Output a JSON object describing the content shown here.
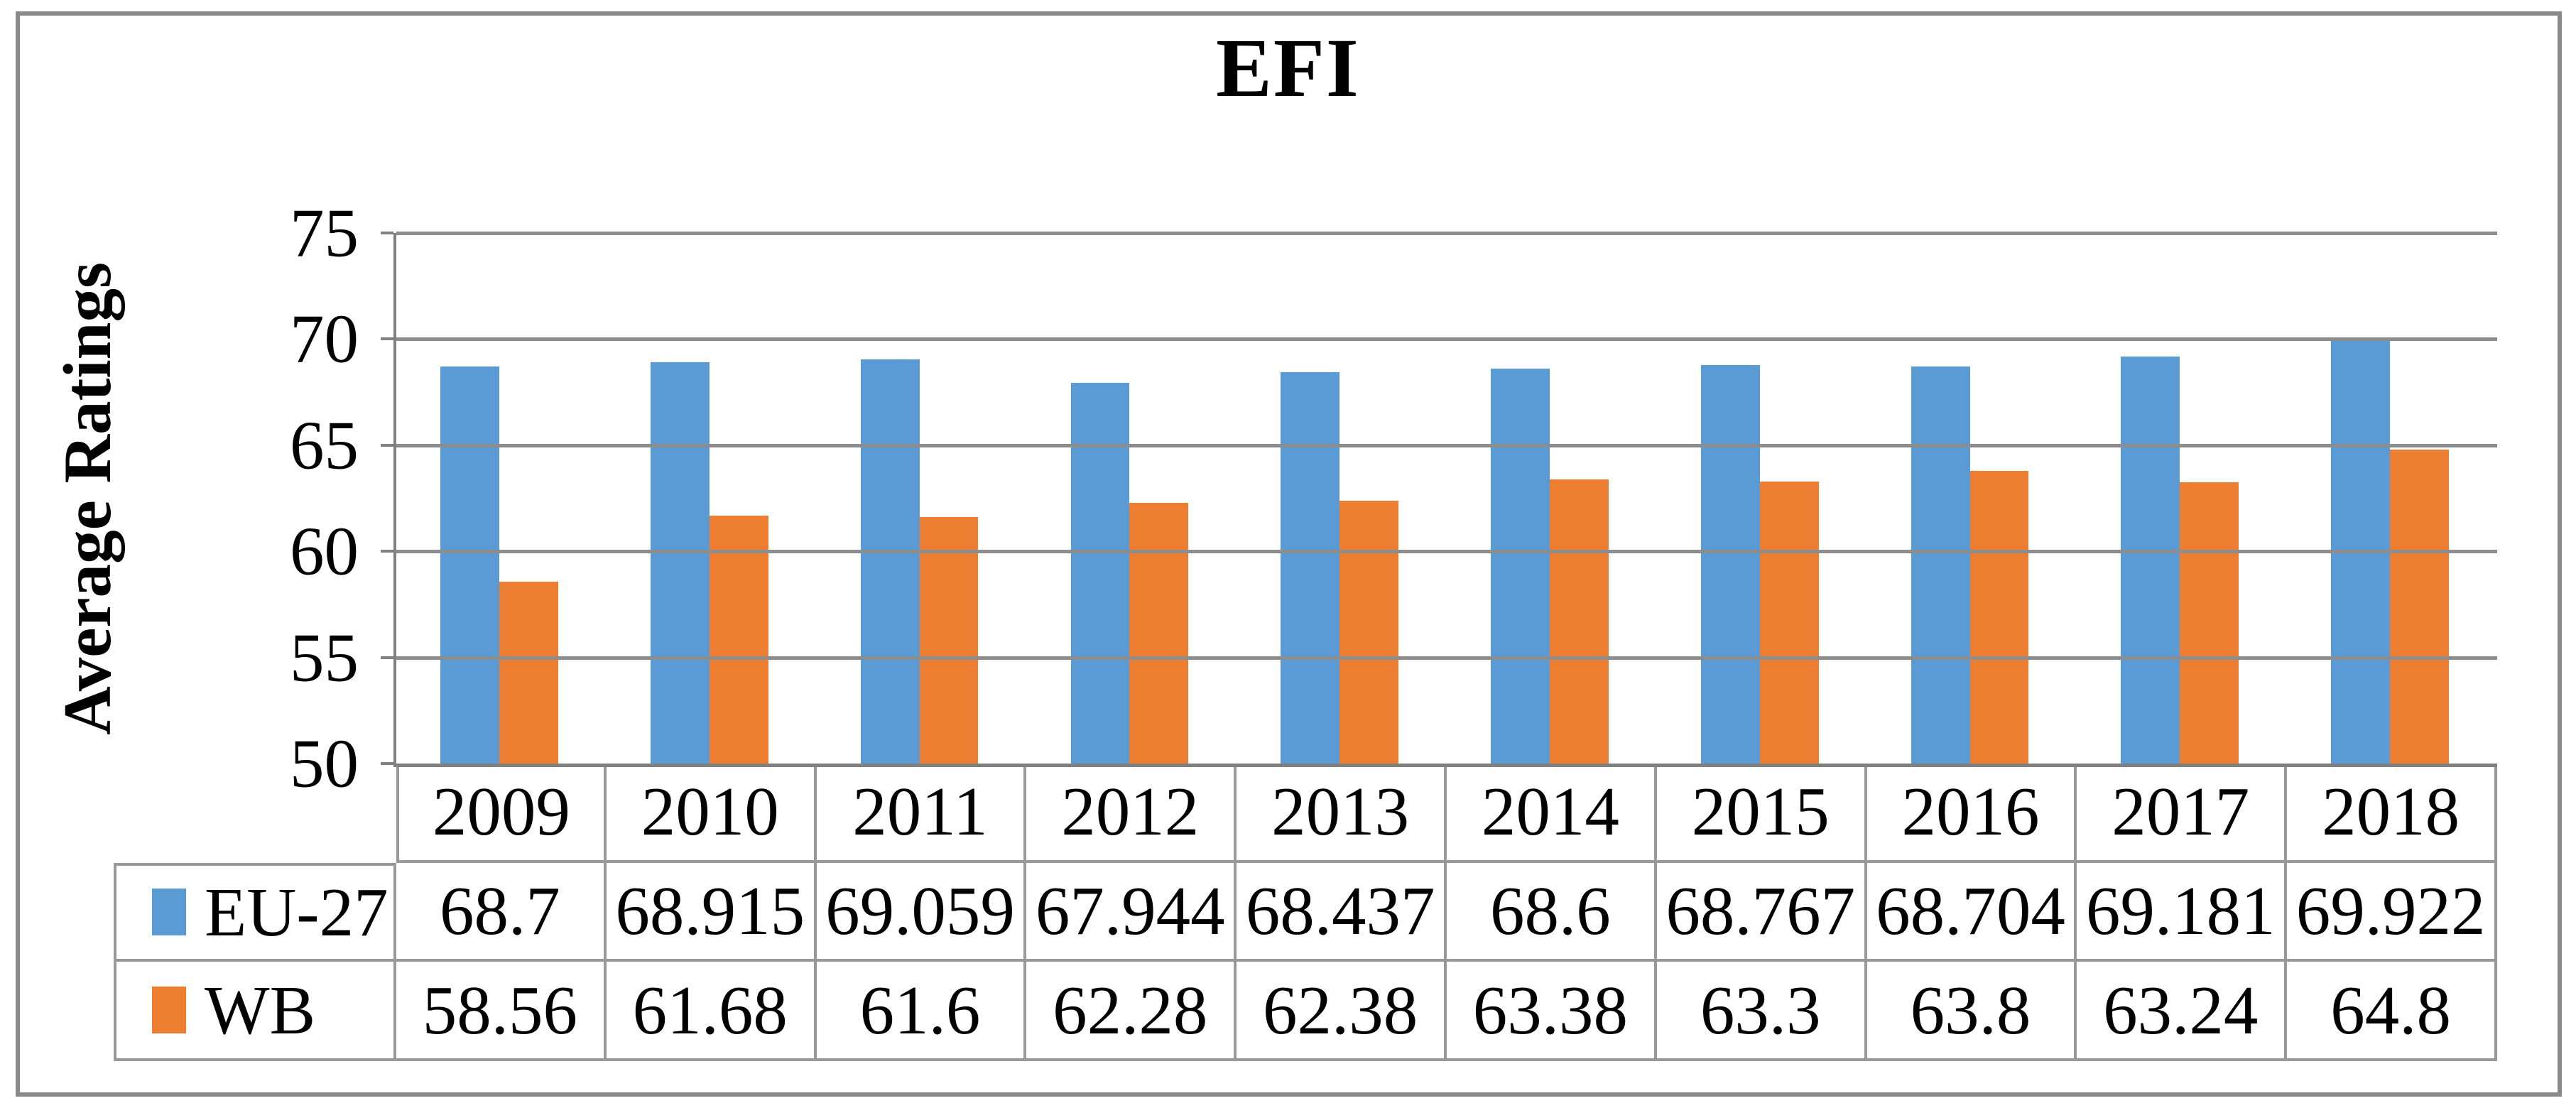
{
  "chart_data": {
    "type": "bar",
    "title": "EFI",
    "ylabel": "Average Ratings",
    "categories": [
      "2009",
      "2010",
      "2011",
      "2012",
      "2013",
      "2014",
      "2015",
      "2016",
      "2017",
      "2018"
    ],
    "series": [
      {
        "name": "EU-27",
        "color": "#5B9BD5",
        "values": [
          68.7,
          68.915,
          69.059,
          67.944,
          68.437,
          68.6,
          68.767,
          68.704,
          69.181,
          69.922
        ],
        "value_labels": [
          "68.7",
          "68.915",
          "69.059",
          "67.944",
          "68.437",
          "68.6",
          "68.767",
          "68.704",
          "69.181",
          "69.922"
        ]
      },
      {
        "name": "WB",
        "color": "#ED7D31",
        "values": [
          58.56,
          61.68,
          61.6,
          62.28,
          62.38,
          63.38,
          63.3,
          63.8,
          63.24,
          64.8
        ],
        "value_labels": [
          "58.56",
          "61.68",
          "61.6",
          "62.28",
          "62.38",
          "63.38",
          "63.3",
          "63.8",
          "63.24",
          "64.8"
        ]
      }
    ],
    "ylim": [
      50,
      75
    ],
    "yticks": [
      75,
      70,
      65,
      60,
      55,
      50
    ],
    "grid": true,
    "legend_position": "table-left",
    "colors": {
      "axis": "#808080",
      "gridline": "#8D8D8D",
      "table_border": "#999999",
      "frame": "#8A8A8A",
      "background": "#FFFFFF"
    }
  }
}
